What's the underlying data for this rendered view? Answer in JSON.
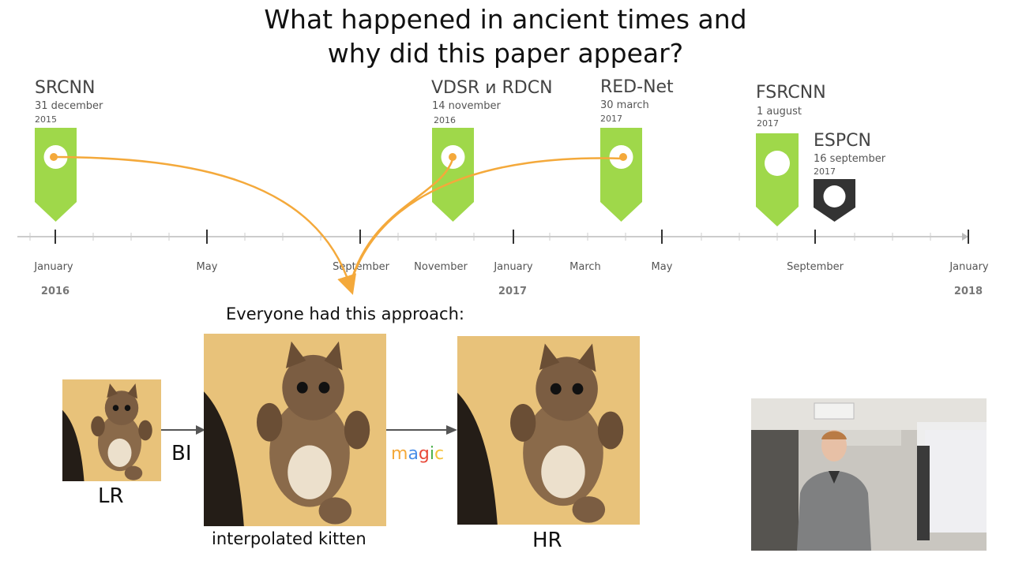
{
  "title": {
    "line1": "What happened in ancient times and",
    "line2": "why did this paper appear?"
  },
  "milestones": [
    {
      "name": "SRCNN",
      "date": "31 december",
      "year": "2015",
      "style": "green-dot",
      "color": "#9fd84a"
    },
    {
      "name": "VDSR и RDCN",
      "date": "14 november",
      "year": "2016",
      "style": "green-dot",
      "color": "#9fd84a"
    },
    {
      "name": "RED-Net",
      "date": "30 march",
      "year": "2017",
      "style": "green-dot",
      "color": "#9fd84a"
    },
    {
      "name": "FSRCNN",
      "date": "1 august",
      "year": "2017",
      "style": "green-plain",
      "color": "#9fd84a"
    },
    {
      "name": "ESPCN",
      "date": "16 september",
      "year": "2017",
      "style": "dark",
      "color": "#333333"
    }
  ],
  "axis": {
    "months": [
      "January",
      "May",
      "September",
      "November",
      "January",
      "March",
      "May",
      "September",
      "January"
    ],
    "years": [
      "2016",
      "2017",
      "2018"
    ]
  },
  "colors": {
    "arrow": "#f4a93b",
    "pin": "#9fd84a",
    "axis": "#bbbbbb"
  },
  "pipeline": {
    "heading": "Everyone had this approach:",
    "lr_label": "LR",
    "bi_label": "BI",
    "interp_label": "interpolated kitten",
    "magic_letters": [
      "m",
      "a",
      "g",
      "i",
      "c"
    ],
    "magic_colors": [
      "#f4a93b",
      "#4a8ee8",
      "#e84a3a",
      "#4ab04a",
      "#f4c23b"
    ],
    "hr_label": "HR"
  },
  "webcam": {
    "icon": "presenter-photo"
  }
}
